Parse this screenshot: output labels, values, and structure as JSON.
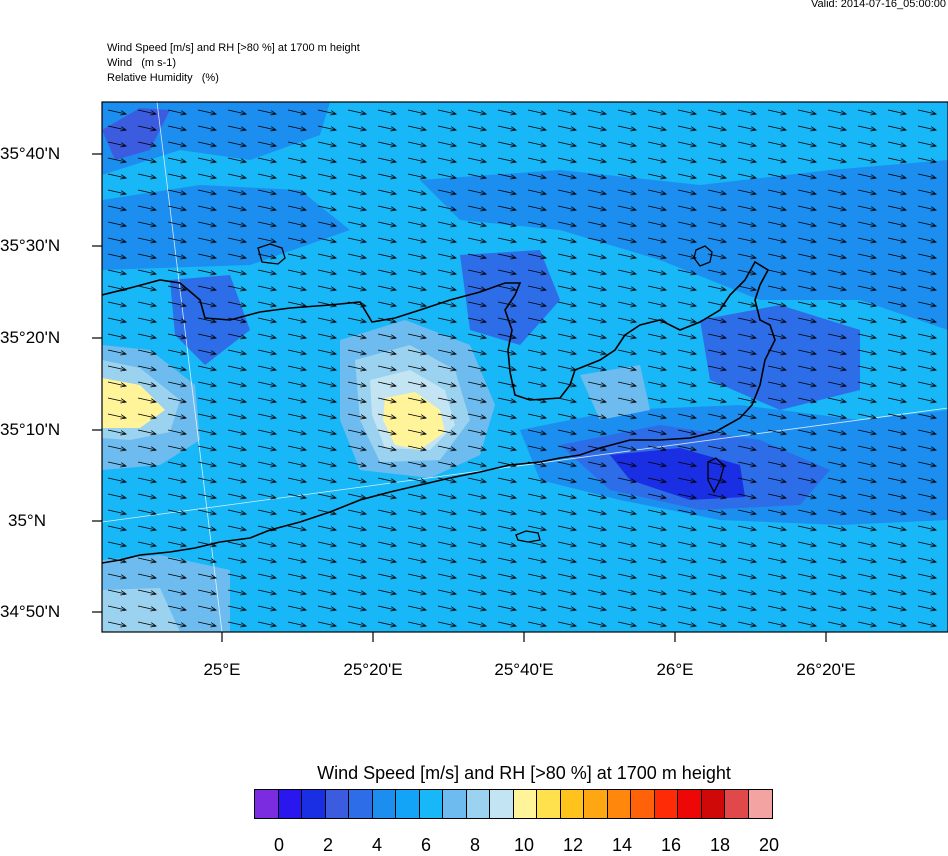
{
  "valid_time": "Valid: 2014-07-16_05:00:00",
  "header": {
    "line1": "Wind Speed [m/s] and RH [>80 %] at 1700 m height",
    "line2": "Wind   (m s-1)",
    "line3": "Relative Humidity   (%)"
  },
  "lat_labels": [
    "35°40'N",
    "35°30'N",
    "35°20'N",
    "35°10'N",
    "35°N",
    "34°50'N"
  ],
  "lon_labels": [
    "25°E",
    "25°20'E",
    "25°40'E",
    "26°E",
    "26°20'E"
  ],
  "colorbar": {
    "title": "Wind Speed [m/s] and RH [>80 %] at 1700 m height",
    "tick_labels": [
      "0",
      "2",
      "4",
      "6",
      "8",
      "10",
      "12",
      "14",
      "16",
      "18",
      "20"
    ],
    "colors": [
      "#7b2be0",
      "#2a16ef",
      "#1a2ee3",
      "#3c5ce0",
      "#2e6de8",
      "#1c8ef0",
      "#14a4f7",
      "#18b7f7",
      "#6ebcef",
      "#9ad2ef",
      "#c3e4f3",
      "#fff49a",
      "#ffe04d",
      "#ffc31c",
      "#ffa712",
      "#ff870c",
      "#ff6209",
      "#ff2b07",
      "#ee0707",
      "#cf0808",
      "#e0484a",
      "#f4a3a3"
    ]
  },
  "legend": {
    "wind_speed_units": "m/s",
    "rh_threshold": ">80 %",
    "height": "1700 m",
    "wind_direction": "westerly, arrows pointing east"
  }
}
